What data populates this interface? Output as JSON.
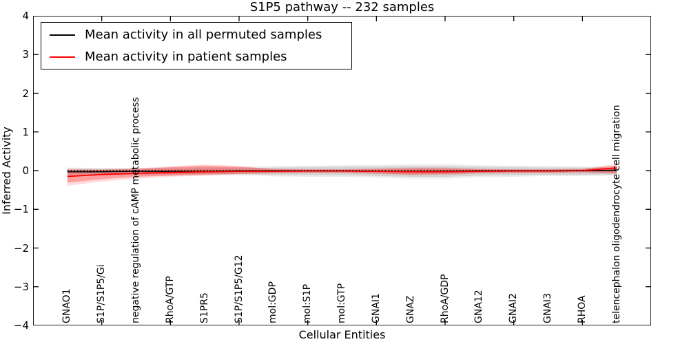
{
  "chart_data": {
    "type": "line",
    "title": "S1P5 pathway -- 232 samples",
    "xlabel": "Cellular Entities",
    "ylabel": "Inferred Activity",
    "ylim": [
      -4,
      4
    ],
    "xlim": [
      0,
      18
    ],
    "grid": false,
    "legend_position": "upper left",
    "ytick_values": [
      4,
      3,
      2,
      1,
      0,
      -1,
      -2,
      -3,
      -4
    ],
    "ytick_labels": [
      "4",
      "3",
      "2",
      "1",
      "0",
      "−1",
      "−2",
      "−3",
      "−4"
    ],
    "xtick_positions_axis": [
      2,
      4,
      6,
      8,
      10,
      12,
      14,
      16
    ],
    "categories": [
      "GNAO1",
      "S1P/S1P5/Gi",
      "negative regulation of cAMP metabolic process",
      "RhoA/GTP",
      "S1PR5",
      "S1P/S1P5/G12",
      "mol:GDP",
      "mol:S1P",
      "mol:GTP",
      "GNAI1",
      "GNAZ",
      "RhoA/GDP",
      "GNA12",
      "GNAI2",
      "GNAI3",
      "RHOA",
      "telencephalon oligodendrocyte cell migration"
    ],
    "series": [
      {
        "name": "Mean activity in all permuted samples",
        "color": "#000000",
        "line_width": 1.6,
        "values": [
          -0.03,
          -0.03,
          -0.02,
          -0.02,
          -0.02,
          -0.01,
          -0.01,
          -0.01,
          -0.01,
          -0.02,
          -0.02,
          -0.02,
          -0.01,
          -0.01,
          -0.01,
          0.0,
          0.01
        ],
        "band_inner": {
          "fill": "rgba(0,0,0,0.10)",
          "hi": [
            0.05,
            0.05,
            0.05,
            0.05,
            0.06,
            0.06,
            0.08,
            0.09,
            0.1,
            0.11,
            0.12,
            0.12,
            0.1,
            0.09,
            0.08,
            0.08,
            0.07
          ],
          "lo": [
            -0.1,
            -0.09,
            -0.09,
            -0.09,
            -0.09,
            -0.09,
            -0.11,
            -0.12,
            -0.12,
            -0.14,
            -0.16,
            -0.16,
            -0.13,
            -0.12,
            -0.11,
            -0.11,
            -0.1
          ]
        },
        "band_outer": {
          "fill": "rgba(0,0,0,0.07)",
          "hi": [
            0.08,
            0.07,
            0.07,
            0.08,
            0.09,
            0.09,
            0.12,
            0.13,
            0.14,
            0.15,
            0.17,
            0.17,
            0.14,
            0.13,
            0.12,
            0.11,
            0.1
          ],
          "lo": [
            -0.14,
            -0.12,
            -0.12,
            -0.12,
            -0.12,
            -0.12,
            -0.15,
            -0.16,
            -0.16,
            -0.18,
            -0.21,
            -0.21,
            -0.17,
            -0.16,
            -0.14,
            -0.14,
            -0.13
          ]
        }
      },
      {
        "name": "Mean activity in patient samples",
        "color": "#ff0000",
        "line_width": 1.8,
        "values": [
          -0.15,
          -0.1,
          -0.07,
          -0.05,
          -0.03,
          -0.02,
          -0.02,
          -0.01,
          -0.01,
          -0.02,
          -0.03,
          -0.03,
          -0.02,
          -0.01,
          -0.01,
          0.0,
          0.07
        ],
        "band_inner": {
          "fill": "rgba(255,0,0,0.28)",
          "hi": [
            0.02,
            0.02,
            0.04,
            0.09,
            0.13,
            0.1,
            0.04,
            0.03,
            0.03,
            0.04,
            0.06,
            0.06,
            0.04,
            0.03,
            0.03,
            0.04,
            0.13
          ],
          "lo": [
            -0.31,
            -0.22,
            -0.16,
            -0.13,
            -0.1,
            -0.08,
            -0.06,
            -0.05,
            -0.05,
            -0.07,
            -0.1,
            -0.09,
            -0.06,
            -0.05,
            -0.05,
            -0.04,
            -0.06
          ]
        },
        "band_outer": {
          "fill": "rgba(255,0,0,0.14)",
          "hi": [
            0.05,
            0.04,
            0.06,
            0.11,
            0.16,
            0.12,
            0.05,
            0.04,
            0.04,
            0.06,
            0.08,
            0.08,
            0.05,
            0.04,
            0.04,
            0.05,
            0.17
          ],
          "lo": [
            -0.39,
            -0.28,
            -0.21,
            -0.16,
            -0.13,
            -0.1,
            -0.07,
            -0.06,
            -0.06,
            -0.09,
            -0.12,
            -0.11,
            -0.08,
            -0.07,
            -0.06,
            -0.06,
            -0.09
          ]
        }
      }
    ],
    "zero_line": {
      "value": 0,
      "color": "#000000",
      "style": "dotted"
    }
  }
}
